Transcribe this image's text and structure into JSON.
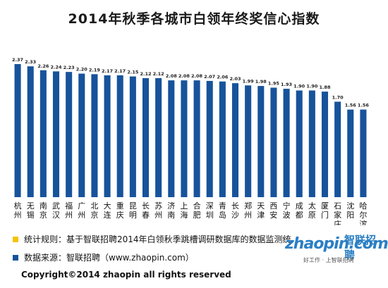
{
  "chart_data": {
    "type": "bar",
    "title": "2014年秋季各城市白领年终奖信心指数",
    "categories": [
      "杭州",
      "无锡",
      "南京",
      "武汉",
      "福州",
      "广州",
      "北京",
      "大连",
      "重庆",
      "昆明",
      "长春",
      "苏州",
      "济南",
      "上海",
      "合肥",
      "深圳",
      "青岛",
      "长沙",
      "郑州",
      "天津",
      "西安",
      "宁波",
      "成都",
      "太原",
      "厦门",
      "石家庄",
      "沈阳",
      "哈尔滨"
    ],
    "values": [
      2.37,
      2.33,
      2.26,
      2.24,
      2.23,
      2.2,
      2.19,
      2.17,
      2.17,
      2.15,
      2.12,
      2.12,
      2.08,
      2.08,
      2.08,
      2.07,
      2.06,
      2.03,
      1.99,
      1.98,
      1.95,
      1.93,
      1.9,
      1.9,
      1.88,
      1.7,
      1.56,
      1.56
    ],
    "value_labels": [
      "2.37",
      "2.33",
      "2.26",
      "2.24",
      "2.23",
      "2.20",
      "2.19",
      "2.17",
      "2.17",
      "2.15",
      "2.12",
      "2.12",
      "2.08",
      "2.08",
      "2.08",
      "2.07",
      "2.06",
      "2.03",
      "1.99",
      "1.98",
      "1.95",
      "1.93",
      "1.90",
      "1.90",
      "1.88",
      "1.70",
      "1.56",
      "1.56"
    ],
    "ylim": [
      0,
      2.5
    ],
    "bar_color": "#17539b",
    "grid": false
  },
  "notes": {
    "rule_label": "统计规则：基于智联招聘2014年白领秋季跳槽调研数据库的数据监测统",
    "rule_color": "#f5c400",
    "source_label": "数据来源：智联招聘（www.zhaopin.com）",
    "source_color": "#17539b"
  },
  "logo": {
    "brand": "zhaopin.com",
    "brand_cn": "智联招聘",
    "slogan": "好工作 · 上智联招聘"
  },
  "copyright": "Copyright©2014 zhaopin all rights reserved"
}
